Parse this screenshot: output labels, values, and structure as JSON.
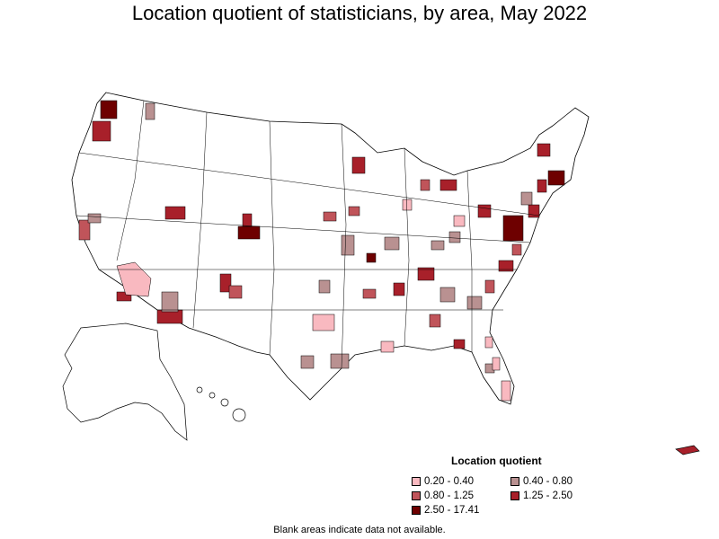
{
  "title": "Location quotient of statisticians, by area, May 2022",
  "legend": {
    "title": "Location quotient",
    "items": [
      {
        "label": "0.20 - 0.40",
        "color": "#f9b9c0"
      },
      {
        "label": "0.40 - 0.80",
        "color": "#b99191"
      },
      {
        "label": "0.80 - 1.25",
        "color": "#c0545a"
      },
      {
        "label": "1.25 - 2.50",
        "color": "#a8202a"
      },
      {
        "label": "2.50 - 17.41",
        "color": "#6e0000"
      }
    ]
  },
  "footnote": "Blank areas indicate data not available.",
  "colors": {
    "border": "#000000",
    "blank": "#ffffff"
  }
}
